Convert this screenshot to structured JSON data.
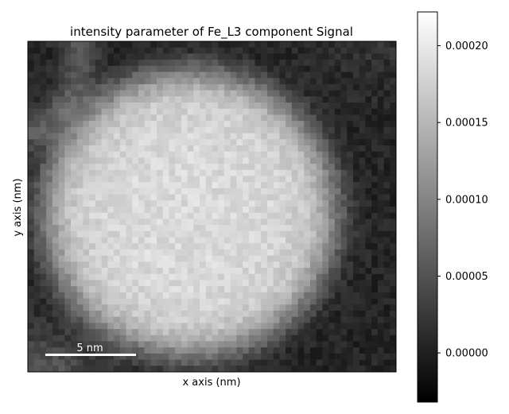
{
  "chart_data": {
    "type": "heatmap",
    "title": "intensity parameter of Fe_L3 component Signal",
    "xlabel": "x axis (nm)",
    "ylabel": "y axis (nm)",
    "grid": false,
    "colormap": "gray",
    "colorbar": {
      "range": [
        -3.2e-05,
        0.000222
      ],
      "ticks": [
        0.0,
        5e-05,
        0.0001,
        0.00015,
        0.0002
      ],
      "tick_labels": [
        "0.00000",
        "0.00005",
        "0.00010",
        "0.00015",
        "0.00020"
      ]
    },
    "scalebar": {
      "label": "5 nm",
      "length_nm": 5,
      "color": "#ffffff"
    },
    "pixel_grid": {
      "cols": 60,
      "rows": 54
    },
    "signal_model": {
      "particle_peak": 0.000185,
      "background": 4.5e-06,
      "particle_center": [
        0.44,
        0.52
      ],
      "particle_radius": 0.39
    }
  }
}
